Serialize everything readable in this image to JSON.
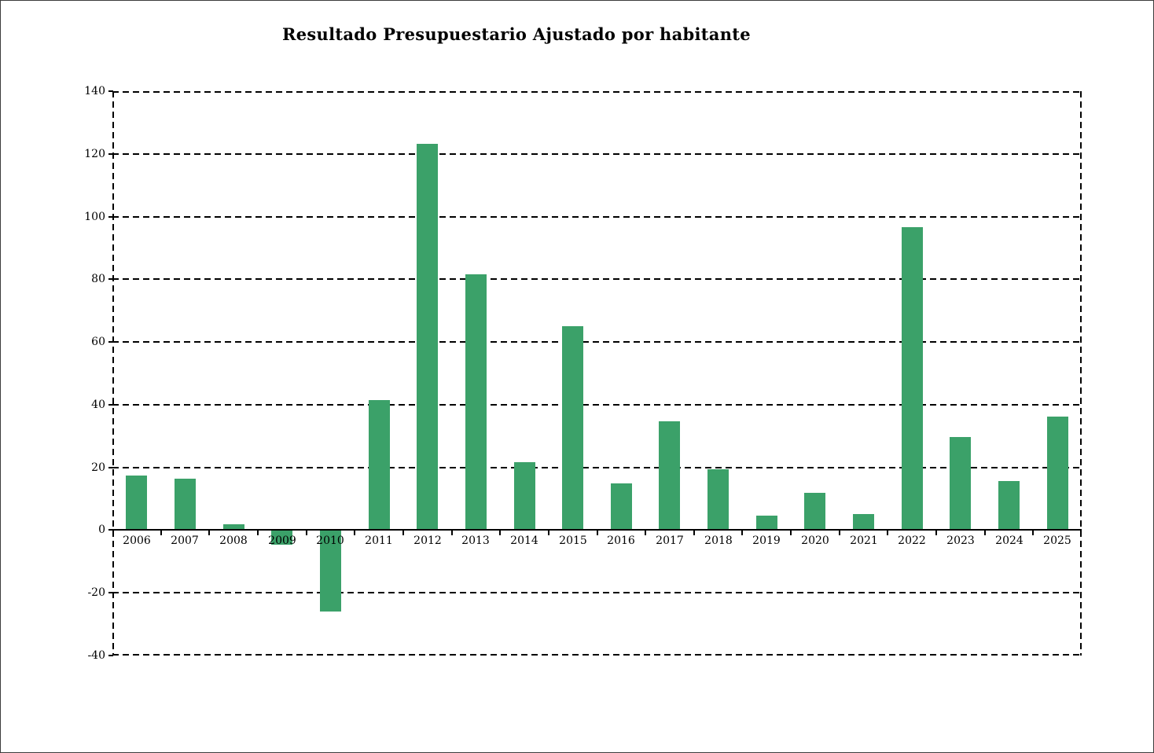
{
  "chart_data": {
    "type": "bar",
    "title": "Resultado Presupuestario Ajustado por habitante",
    "categories": [
      "2006",
      "2007",
      "2008",
      "2009",
      "2010",
      "2011",
      "2012",
      "2013",
      "2014",
      "2015",
      "2016",
      "2017",
      "2018",
      "2019",
      "2020",
      "2021",
      "2022",
      "2023",
      "2024",
      "2025"
    ],
    "values": [
      17.3,
      16.4,
      1.9,
      -4.4,
      -25.7,
      41.4,
      123.2,
      81.7,
      21.7,
      65.1,
      14.9,
      34.7,
      19.5,
      4.6,
      11.9,
      5.2,
      96.6,
      29.7,
      15.7,
      36.1
    ],
    "xlabel": "",
    "ylabel": "",
    "ylim": [
      -40,
      140
    ],
    "y_ticks": [
      140,
      120,
      100,
      80,
      60,
      40,
      20,
      0,
      -20,
      -40
    ],
    "grid": "horizontal-dashed",
    "legend": "none",
    "bar_color": "#3BA169",
    "axis_color": "#000000"
  }
}
